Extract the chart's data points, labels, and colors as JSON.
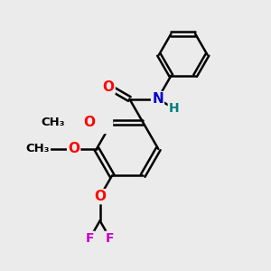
{
  "bg_color": "#ebebeb",
  "bond_color": "#000000",
  "bond_width": 1.8,
  "atom_colors": {
    "O": "#ff0000",
    "N": "#0000cc",
    "H": "#008080",
    "F": "#cc00cc",
    "C": "#000000"
  },
  "font_size": 10,
  "fig_size": [
    3.0,
    3.0
  ],
  "dpi": 100
}
